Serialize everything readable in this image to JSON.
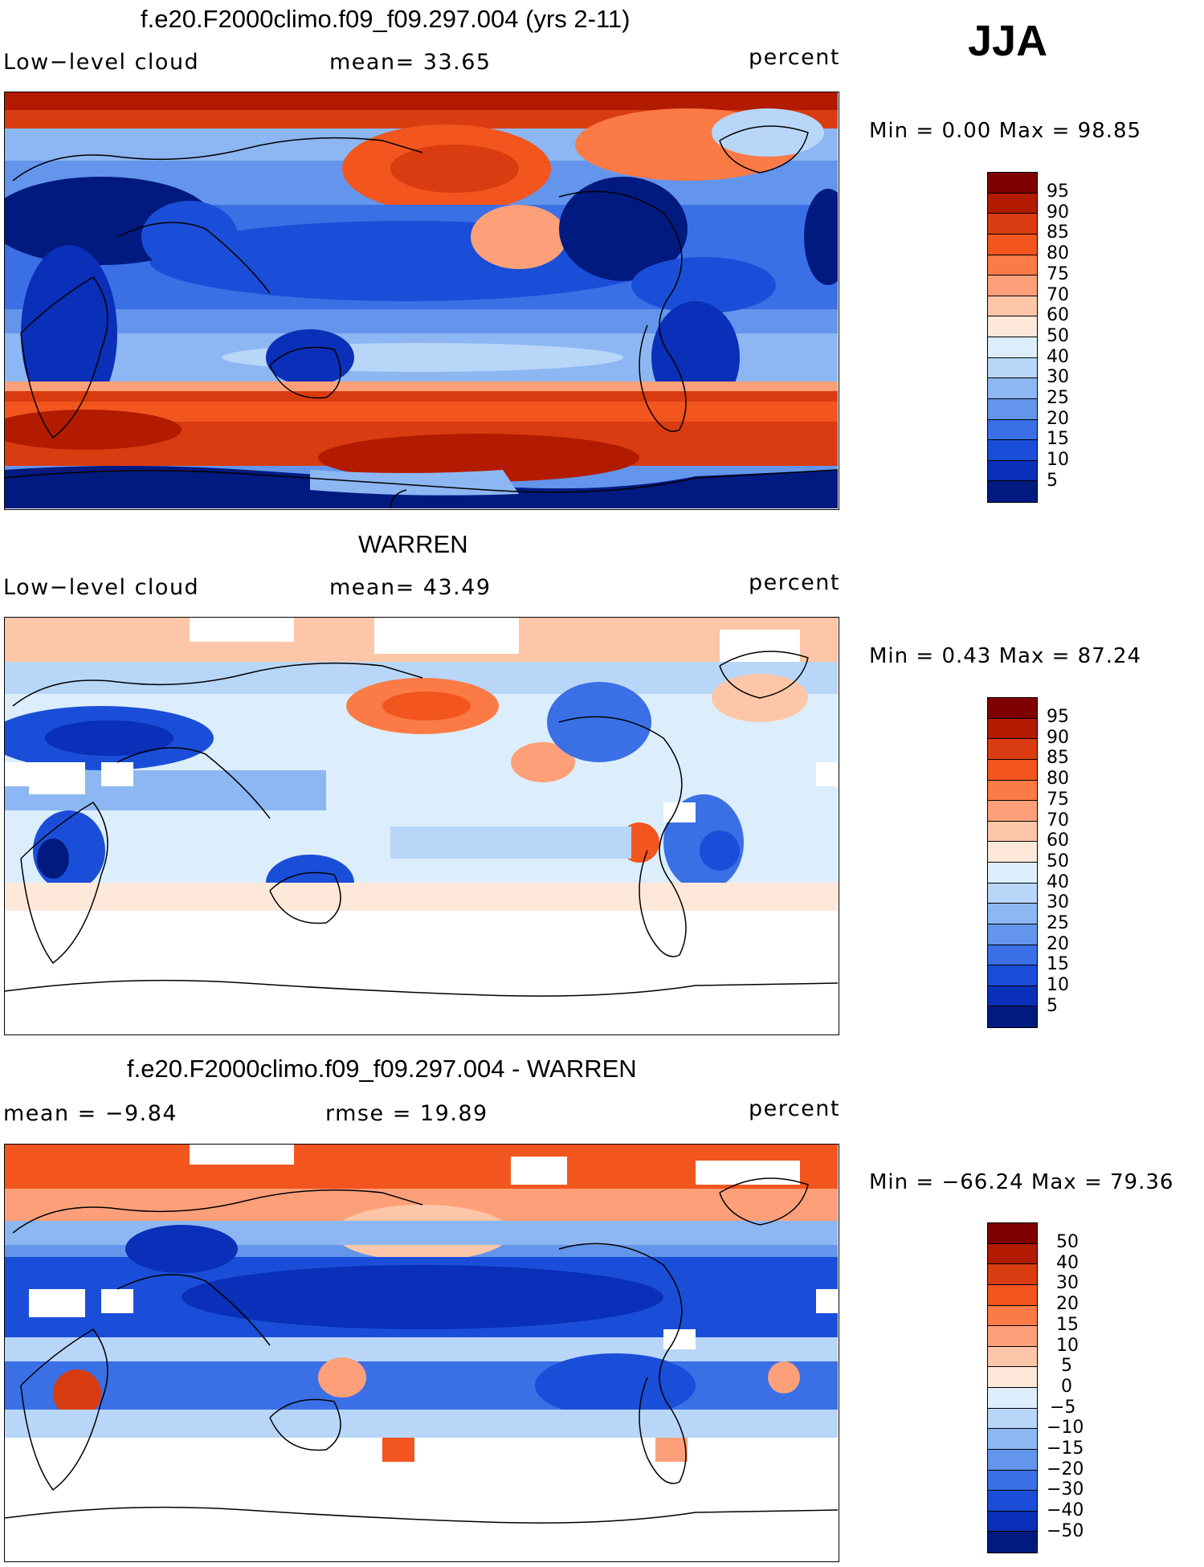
{
  "season": "JJA",
  "panels": [
    {
      "id": "model",
      "title": "f.e20.F2000climo.f09_f09.297.004 (yrs 2-11)",
      "left_label": "Low−level cloud",
      "center_label": "mean=   33.65",
      "units": "percent",
      "minmax": "Min =    0.00 Max =   98.85",
      "colorbar_labels": [
        "95",
        "90",
        "85",
        "80",
        "75",
        "70",
        "60",
        "50",
        "40",
        "30",
        "25",
        "20",
        "15",
        "10",
        "5"
      ]
    },
    {
      "id": "obs",
      "title": "WARREN",
      "left_label": "Low−level cloud",
      "center_label": "mean=   43.49",
      "units": "percent",
      "minmax": "Min =    0.43 Max =   87.24",
      "colorbar_labels": [
        "95",
        "90",
        "85",
        "80",
        "75",
        "70",
        "60",
        "50",
        "40",
        "30",
        "25",
        "20",
        "15",
        "10",
        "5"
      ]
    },
    {
      "id": "diff",
      "title": "f.e20.F2000climo.f09_f09.297.004 - WARREN",
      "left_label": "mean =   −9.84",
      "center_label": "rmse =   19.89",
      "units": "percent",
      "minmax": "Min = −66.24 Max =   79.36",
      "colorbar_labels": [
        "50",
        "40",
        "30",
        "20",
        "15",
        "10",
        "5",
        "0",
        "−5",
        "−10",
        "−15",
        "−20",
        "−30",
        "−40",
        "−50"
      ]
    }
  ],
  "colors": {
    "scale16": [
      "#7f0000",
      "#b31b00",
      "#d93c10",
      "#f2551e",
      "#fc7a45",
      "#fda07a",
      "#fdc6a8",
      "#fde8da",
      "#dceefb",
      "#b8d6f8",
      "#8db7f2",
      "#6395ec",
      "#3a6fe6",
      "#1b4ed8",
      "#0a2fb8",
      "#011a80"
    ]
  },
  "colorbar_data": {
    "model_levels": [
      95,
      90,
      85,
      80,
      75,
      70,
      60,
      50,
      40,
      30,
      25,
      20,
      15,
      10,
      5
    ],
    "obs_levels": [
      95,
      90,
      85,
      80,
      75,
      70,
      60,
      50,
      40,
      30,
      25,
      20,
      15,
      10,
      5
    ],
    "diff_levels": [
      50,
      40,
      30,
      20,
      15,
      10,
      5,
      0,
      -5,
      -10,
      -15,
      -20,
      -30,
      -40,
      -50
    ]
  }
}
